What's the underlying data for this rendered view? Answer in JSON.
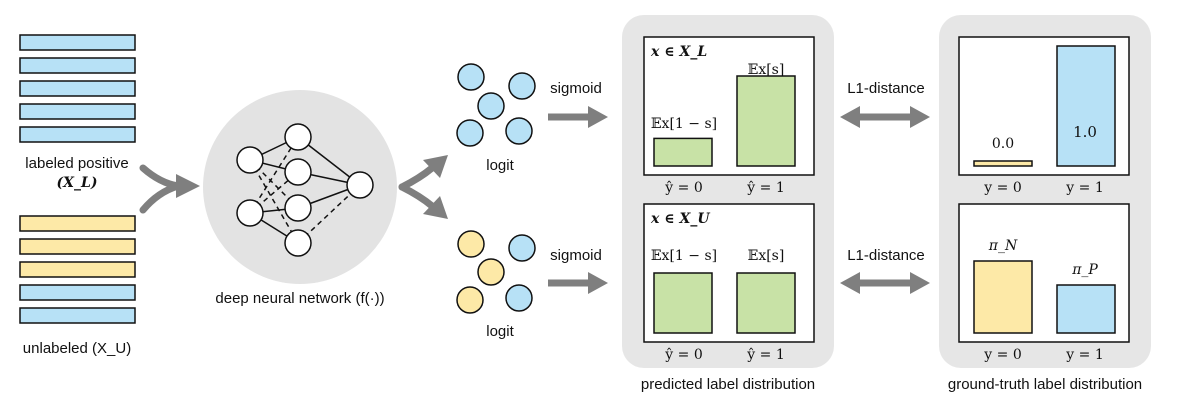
{
  "colors": {
    "positive": "#b7e1f6",
    "unlabeled_yellow": "#fde9a7",
    "bar_green": "#c8e2a6",
    "panel_gray": "#e6e6e6",
    "arrow_gray": "#7f7f7f",
    "stroke": "#111111"
  },
  "inputs": {
    "labeled_label": "labeled positive",
    "labeled_symbol": "(X_L)",
    "unlabeled_label": "unlabeled (X_U)"
  },
  "network": {
    "label": "deep neural network (f(·))"
  },
  "logits": {
    "top_label": "logit",
    "bottom_label": "logit",
    "top_arrow_label": "sigmoid",
    "bottom_arrow_label": "sigmoid"
  },
  "predicted": {
    "caption": "predicted label distribution",
    "top": {
      "set_label": "x ∈ X_L",
      "left_bar_label": "𝔼x[1 − s]",
      "right_bar_label": "𝔼x[s]",
      "left_axis_label": "ŷ = 0",
      "right_axis_label": "ŷ = 1",
      "left_value": 0.23,
      "right_value": 0.75
    },
    "bottom": {
      "set_label": "x ∈ X_U",
      "left_bar_label": "𝔼x[1 − s]",
      "right_bar_label": "𝔼x[s]",
      "left_axis_label": "ŷ = 0",
      "right_axis_label": "ŷ = 1",
      "left_value": 0.5,
      "right_value": 0.5
    }
  },
  "ground_truth": {
    "caption": "ground-truth label distribution",
    "top": {
      "left_value_label": "0.0",
      "right_value_label": "1.0",
      "left_axis_label": "y = 0",
      "right_axis_label": "y = 1",
      "left_value": 0.0,
      "right_value": 1.0
    },
    "bottom": {
      "left_value_label": "π_N",
      "right_value_label": "π_P",
      "left_axis_label": "y = 0",
      "right_axis_label": "y = 1",
      "left_value": 0.6,
      "right_value": 0.4
    }
  },
  "distance": {
    "top_label": "L1-distance",
    "bottom_label": "L1-distance"
  }
}
